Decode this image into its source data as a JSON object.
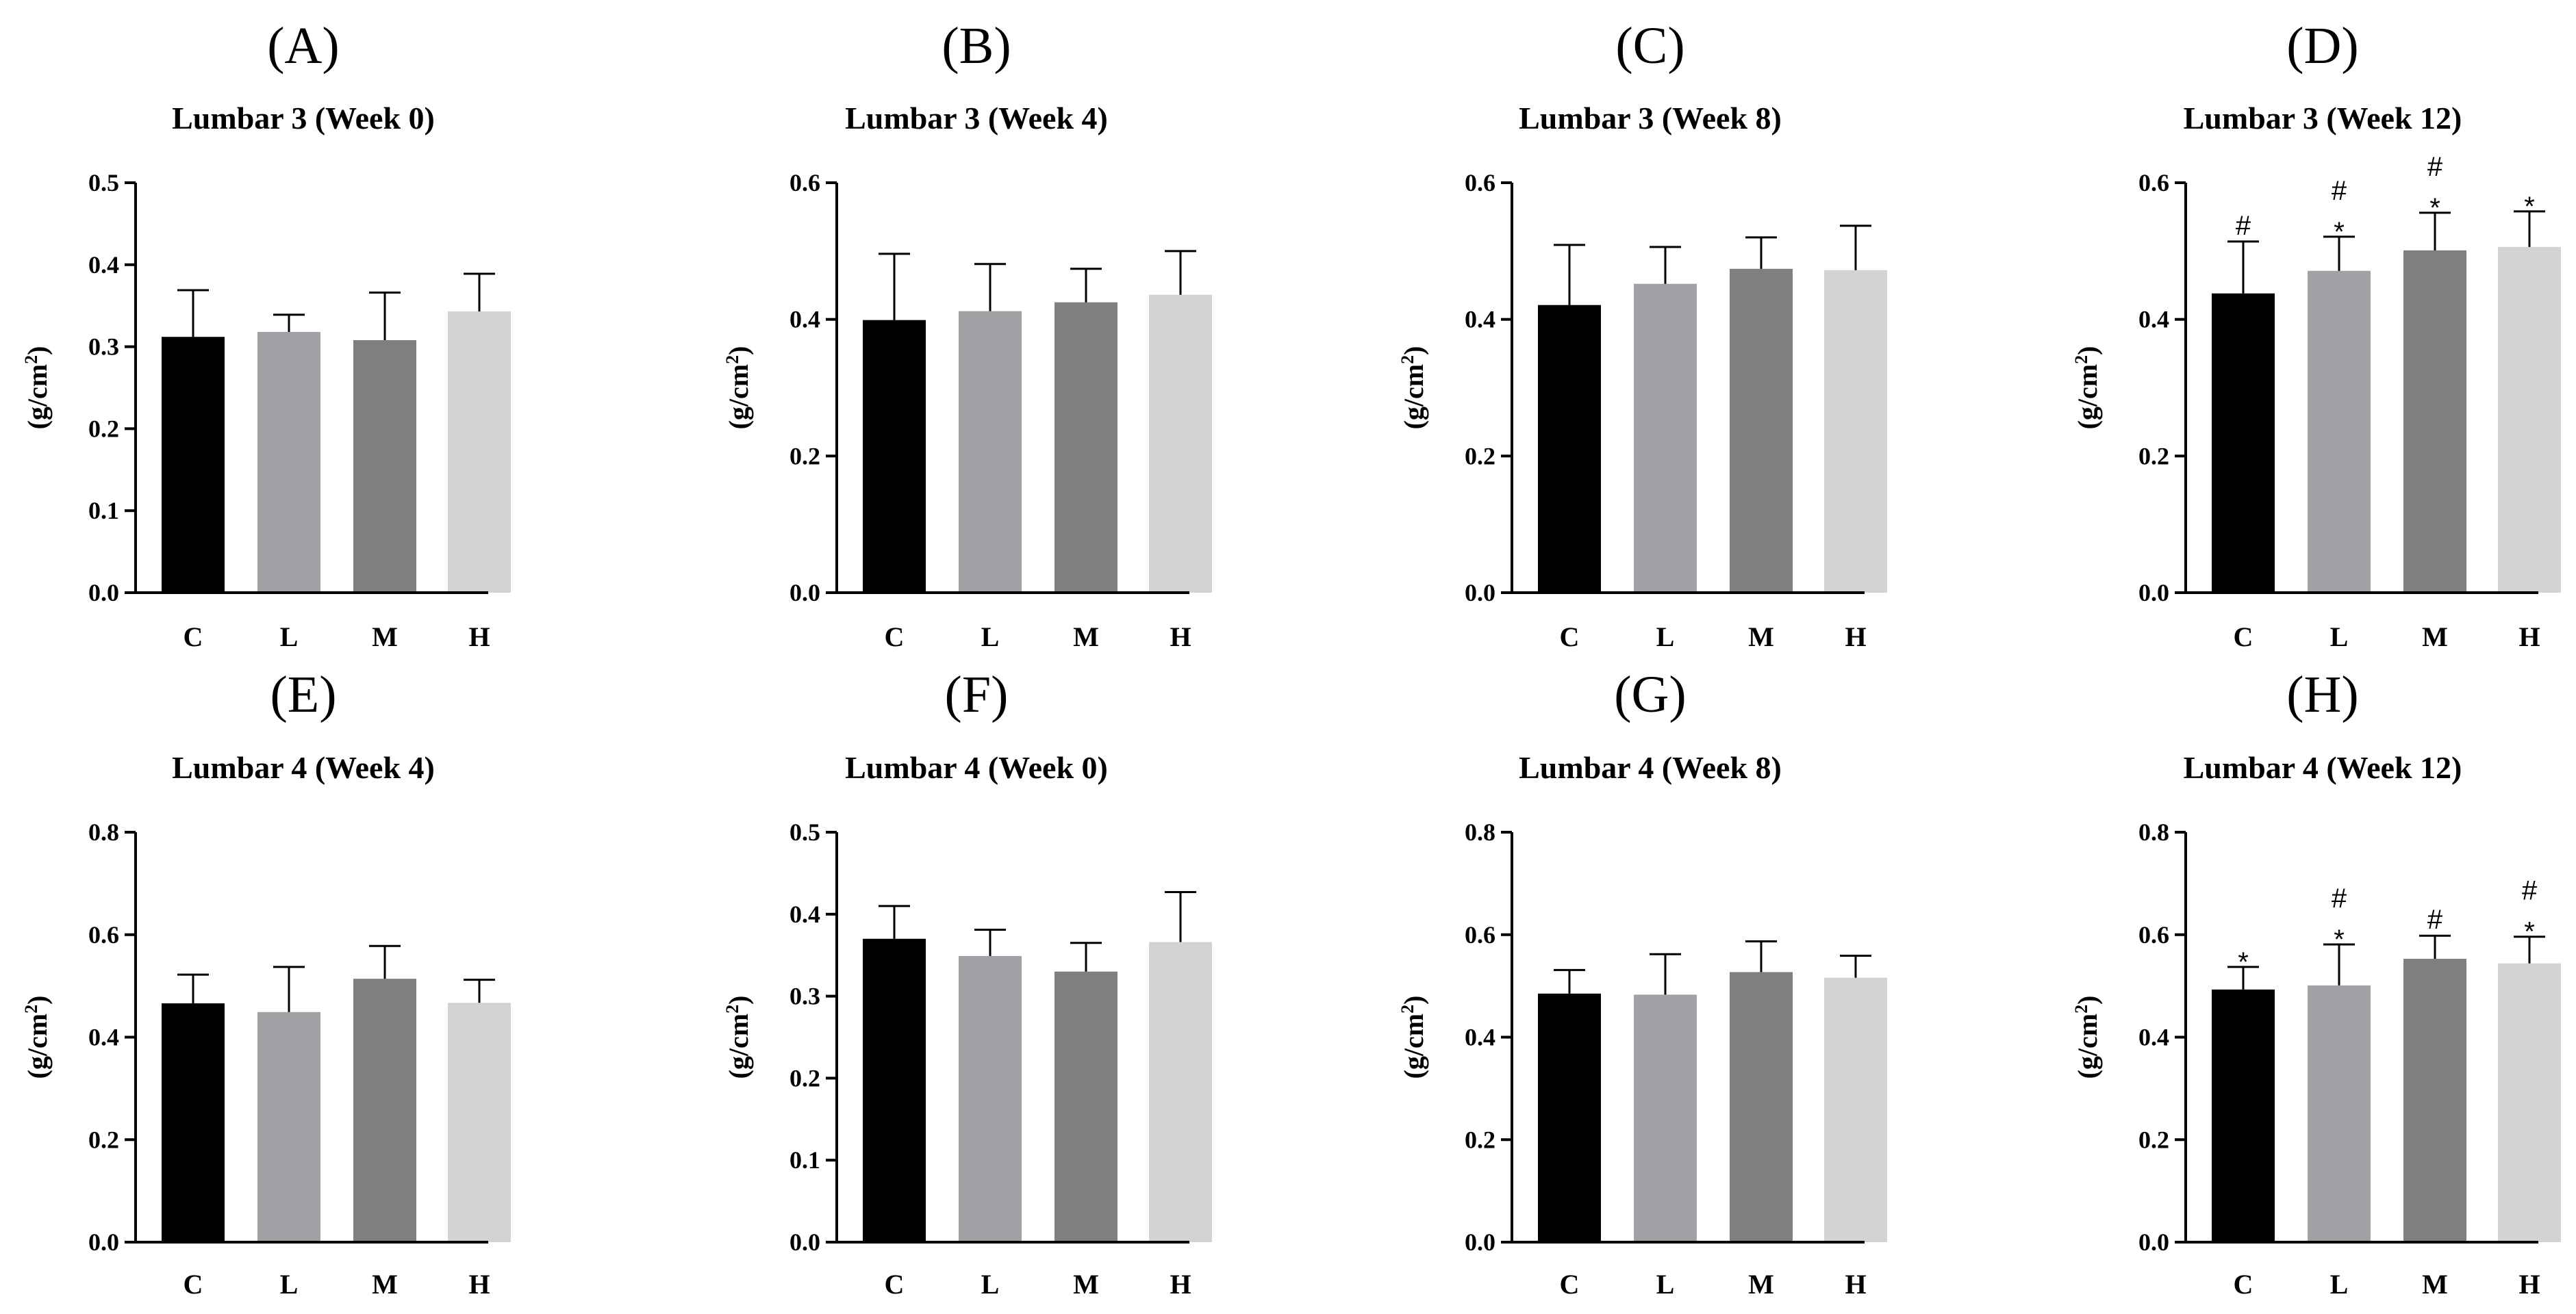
{
  "figure": {
    "categories": [
      "C",
      "L",
      "M",
      "H"
    ],
    "ylabel": "(g/cm",
    "ylabel_sup": "2",
    "ylabel_close": ")",
    "colors": [
      "#000000",
      "#a1a0a5",
      "#7f7f7f",
      "#d3d3d3"
    ],
    "axis_color": "#000000"
  },
  "chart_data": [
    {
      "type": "bar",
      "letter": "(A)",
      "title": "Lumbar 3 (Week 0)",
      "categories": [
        "C",
        "L",
        "M",
        "H"
      ],
      "values": [
        0.312,
        0.318,
        0.308,
        0.343
      ],
      "errors": [
        0.057,
        0.021,
        0.058,
        0.046
      ],
      "ylim": [
        0,
        0.5
      ],
      "yticks": [
        "0.0",
        "0.1",
        "0.2",
        "0.3",
        "0.4",
        "0.5"
      ],
      "annotations": [
        [],
        [],
        [],
        []
      ]
    },
    {
      "type": "bar",
      "letter": "(B)",
      "title": "Lumbar 3 (Week 4)",
      "categories": [
        "C",
        "L",
        "M",
        "H"
      ],
      "values": [
        0.399,
        0.412,
        0.425,
        0.436
      ],
      "errors": [
        0.097,
        0.069,
        0.049,
        0.064
      ],
      "ylim": [
        0,
        0.6
      ],
      "yticks": [
        "0.0",
        "0.2",
        "0.4",
        "0.6"
      ],
      "annotations": [
        [],
        [],
        [],
        []
      ]
    },
    {
      "type": "bar",
      "letter": "(C)",
      "title": "Lumbar 3 (Week 8)",
      "categories": [
        "C",
        "L",
        "M",
        "H"
      ],
      "values": [
        0.421,
        0.452,
        0.474,
        0.472
      ],
      "errors": [
        0.088,
        0.054,
        0.046,
        0.065
      ],
      "ylim": [
        0,
        0.6
      ],
      "yticks": [
        "0.0",
        "0.2",
        "0.4",
        "0.6"
      ],
      "annotations": [
        [],
        [],
        [],
        []
      ]
    },
    {
      "type": "bar",
      "letter": "(D)",
      "title": "Lumbar 3 (Week 12)",
      "categories": [
        "C",
        "L",
        "M",
        "H"
      ],
      "values": [
        0.438,
        0.471,
        0.501,
        0.506
      ],
      "errors": [
        0.076,
        0.05,
        0.055,
        0.052
      ],
      "ylim": [
        0,
        0.6
      ],
      "yticks": [
        "0.0",
        "0.2",
        "0.4",
        "0.6"
      ],
      "annotations": [
        [
          "#"
        ],
        [
          "*",
          "#"
        ],
        [
          "*",
          "#"
        ],
        [
          "*"
        ]
      ]
    },
    {
      "type": "bar",
      "letter": "(E)",
      "title": "Lumbar 4 (Week 4)",
      "categories": [
        "C",
        "L",
        "M",
        "H"
      ],
      "values": [
        0.466,
        0.449,
        0.514,
        0.467
      ],
      "errors": [
        0.056,
        0.088,
        0.064,
        0.045
      ],
      "ylim": [
        0,
        0.8
      ],
      "yticks": [
        "0.0",
        "0.2",
        "0.4",
        "0.6",
        "0.8"
      ],
      "annotations": [
        [],
        [],
        [],
        []
      ]
    },
    {
      "type": "bar",
      "letter": "(F)",
      "title": "Lumbar 4 (Week 0)",
      "categories": [
        "C",
        "L",
        "M",
        "H"
      ],
      "values": [
        0.37,
        0.349,
        0.33,
        0.366
      ],
      "errors": [
        0.04,
        0.032,
        0.035,
        0.061
      ],
      "ylim": [
        0,
        0.5
      ],
      "yticks": [
        "0.0",
        "0.1",
        "0.2",
        "0.3",
        "0.4",
        "0.5"
      ],
      "annotations": [
        [],
        [],
        [],
        []
      ]
    },
    {
      "type": "bar",
      "letter": "(G)",
      "title": "Lumbar 4 (Week 8)",
      "categories": [
        "C",
        "L",
        "M",
        "H"
      ],
      "values": [
        0.485,
        0.483,
        0.527,
        0.516
      ],
      "errors": [
        0.046,
        0.079,
        0.06,
        0.043
      ],
      "ylim": [
        0,
        0.8
      ],
      "yticks": [
        "0.0",
        "0.2",
        "0.4",
        "0.6",
        "0.8"
      ],
      "annotations": [
        [],
        [],
        [],
        []
      ]
    },
    {
      "type": "bar",
      "letter": "(H)",
      "title": "Lumbar 4 (Week 12)",
      "categories": [
        "C",
        "L",
        "M",
        "H"
      ],
      "values": [
        0.493,
        0.501,
        0.553,
        0.544
      ],
      "errors": [
        0.044,
        0.08,
        0.045,
        0.052
      ],
      "ylim": [
        0,
        0.8
      ],
      "yticks": [
        "0.0",
        "0.2",
        "0.4",
        "0.6",
        "0.8"
      ],
      "annotations": [
        [
          "*"
        ],
        [
          "*",
          "#"
        ],
        [
          "#"
        ],
        [
          "*",
          "#"
        ]
      ]
    }
  ]
}
